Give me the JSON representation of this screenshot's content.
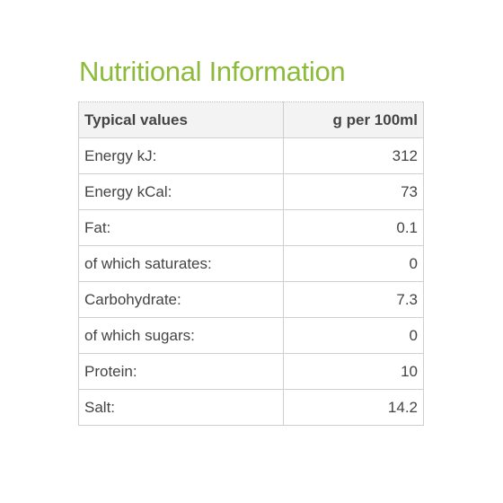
{
  "heading": "Nutritional Information",
  "table": {
    "headers": [
      "Typical values",
      "g per 100ml"
    ],
    "rows": [
      [
        "Energy kJ:",
        "312"
      ],
      [
        "Energy kCal:",
        "73"
      ],
      [
        "Fat:",
        "0.1"
      ],
      [
        "of which saturates:",
        "0"
      ],
      [
        "Carbohydrate:",
        "7.3"
      ],
      [
        "of which sugars:",
        "0"
      ],
      [
        "Protein:",
        "10"
      ],
      [
        "Salt:",
        "14.2"
      ]
    ]
  },
  "colors": {
    "heading": "#8cbb3c",
    "text": "#444444",
    "header_background": "#f3f3f3",
    "border": "#cfcfcf"
  }
}
